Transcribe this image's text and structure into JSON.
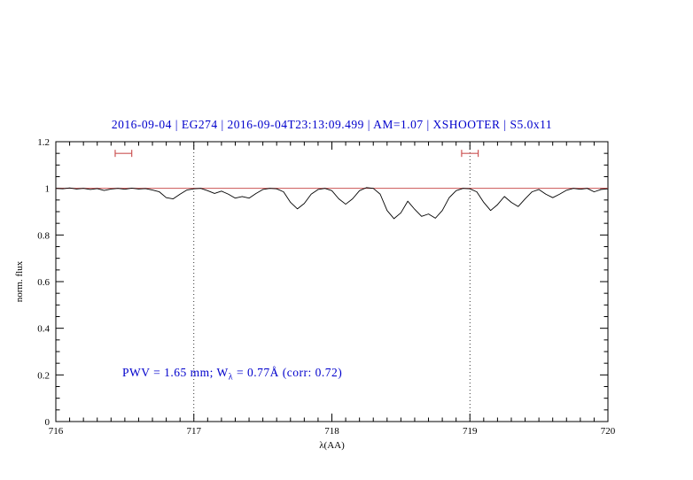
{
  "colors": {
    "title": "#0000cc",
    "annotation": "#0000cc",
    "continuum": "#cc5555",
    "marker": "#cc5555",
    "spectrum": "#000000"
  },
  "chart_data": {
    "type": "line",
    "title": "2016-09-04 | EG274 | 2016-09-04T23:13:09.499 | AM=1.07 | XSHOOTER | S5.0x11",
    "xlabel": "λ(AA)",
    "ylabel": "norm. flux",
    "xlim": [
      716,
      720
    ],
    "ylim": [
      0,
      1.2
    ],
    "x_major_ticks": [
      716,
      717,
      718,
      719,
      720
    ],
    "x_tick_labels": [
      "716",
      "717",
      "718",
      "719",
      "720"
    ],
    "x_minor_step": 0.1,
    "y_major_ticks": [
      0,
      0.2,
      0.4,
      0.6,
      0.8,
      1,
      1.2
    ],
    "y_tick_labels": [
      "0",
      "0.2",
      "0.4",
      "0.6",
      "0.8",
      "1",
      "1.2"
    ],
    "y_minor_step": 0.05,
    "grid": "off",
    "legend": "none",
    "dotted_vlines": [
      717,
      719
    ],
    "continuum_line": {
      "y": 1.0
    },
    "range_markers": [
      {
        "x_center": 716.49,
        "half_width": 0.06,
        "y": 1.15
      },
      {
        "x_center": 719.0,
        "half_width": 0.06,
        "y": 1.15
      }
    ],
    "annotation": {
      "prefix": "PWV = 1.65 mm; W",
      "sub": "λ",
      "suffix": " = 0.77Å (corr: 0.72)"
    },
    "series": [
      {
        "name": "normalized spectrum",
        "points": [
          [
            716.0,
            1.0
          ],
          [
            716.05,
            0.998
          ],
          [
            716.1,
            1.002
          ],
          [
            716.15,
            0.997
          ],
          [
            716.2,
            1.0
          ],
          [
            716.25,
            0.995
          ],
          [
            716.3,
            0.999
          ],
          [
            716.35,
            0.991
          ],
          [
            716.4,
            0.997
          ],
          [
            716.45,
            1.0
          ],
          [
            716.5,
            0.996
          ],
          [
            716.55,
            1.001
          ],
          [
            716.6,
            0.997
          ],
          [
            716.65,
            0.999
          ],
          [
            716.7,
            0.993
          ],
          [
            716.75,
            0.985
          ],
          [
            716.8,
            0.96
          ],
          [
            716.85,
            0.955
          ],
          [
            716.9,
            0.975
          ],
          [
            716.95,
            0.993
          ],
          [
            717.0,
            0.998
          ],
          [
            717.05,
            1.0
          ],
          [
            717.1,
            0.99
          ],
          [
            717.15,
            0.978
          ],
          [
            717.2,
            0.988
          ],
          [
            717.25,
            0.975
          ],
          [
            717.3,
            0.958
          ],
          [
            717.35,
            0.965
          ],
          [
            717.4,
            0.958
          ],
          [
            717.45,
            0.978
          ],
          [
            717.5,
            0.995
          ],
          [
            717.55,
            1.0
          ],
          [
            717.6,
            0.998
          ],
          [
            717.65,
            0.985
          ],
          [
            717.7,
            0.94
          ],
          [
            717.75,
            0.912
          ],
          [
            717.8,
            0.935
          ],
          [
            717.85,
            0.975
          ],
          [
            717.9,
            0.995
          ],
          [
            717.95,
            1.0
          ],
          [
            718.0,
            0.99
          ],
          [
            718.05,
            0.955
          ],
          [
            718.1,
            0.932
          ],
          [
            718.15,
            0.955
          ],
          [
            718.2,
            0.99
          ],
          [
            718.25,
            1.003
          ],
          [
            718.3,
            1.0
          ],
          [
            718.35,
            0.975
          ],
          [
            718.4,
            0.905
          ],
          [
            718.45,
            0.87
          ],
          [
            718.5,
            0.895
          ],
          [
            718.55,
            0.945
          ],
          [
            718.6,
            0.91
          ],
          [
            718.65,
            0.88
          ],
          [
            718.7,
            0.89
          ],
          [
            718.75,
            0.872
          ],
          [
            718.8,
            0.905
          ],
          [
            718.85,
            0.96
          ],
          [
            718.9,
            0.99
          ],
          [
            718.95,
            1.0
          ],
          [
            719.0,
            0.998
          ],
          [
            719.05,
            0.985
          ],
          [
            719.1,
            0.94
          ],
          [
            719.15,
            0.905
          ],
          [
            719.2,
            0.93
          ],
          [
            719.25,
            0.965
          ],
          [
            719.3,
            0.94
          ],
          [
            719.35,
            0.922
          ],
          [
            719.4,
            0.955
          ],
          [
            719.45,
            0.985
          ],
          [
            719.5,
            0.995
          ],
          [
            719.55,
            0.975
          ],
          [
            719.6,
            0.96
          ],
          [
            719.65,
            0.975
          ],
          [
            719.7,
            0.992
          ],
          [
            719.75,
            1.0
          ],
          [
            719.8,
            0.996
          ],
          [
            719.85,
            1.0
          ],
          [
            719.9,
            0.985
          ],
          [
            719.95,
            0.995
          ],
          [
            720.0,
            0.998
          ]
        ]
      }
    ]
  }
}
